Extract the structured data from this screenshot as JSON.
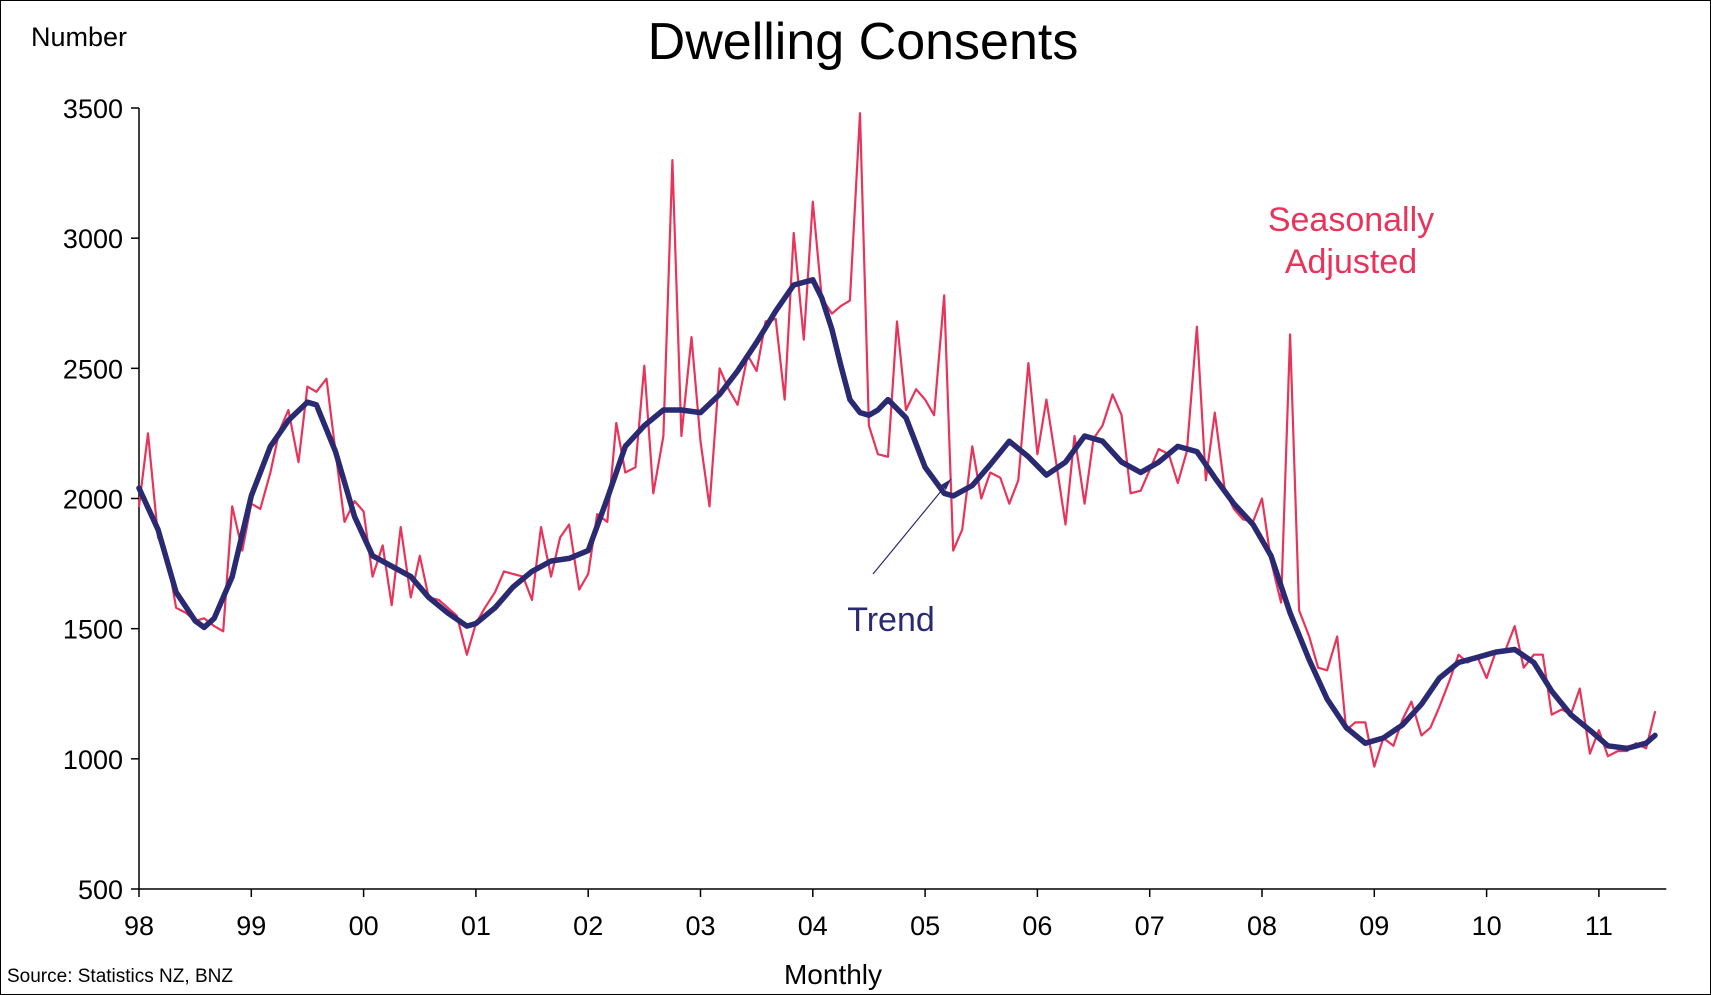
{
  "chart_data": {
    "type": "line",
    "title": "Dwelling Consents",
    "ylabel": "Number",
    "xlabel": "Monthly",
    "source": "Source: Statistics NZ, BNZ",
    "ylim": [
      500,
      3500
    ],
    "yticks": [
      500,
      1000,
      1500,
      2000,
      2500,
      3000,
      3500
    ],
    "xlim": [
      1998.0,
      2011.6
    ],
    "xticks": [
      {
        "label": "98",
        "value": 1998
      },
      {
        "label": "99",
        "value": 1999
      },
      {
        "label": "00",
        "value": 2000
      },
      {
        "label": "01",
        "value": 2001
      },
      {
        "label": "02",
        "value": 2002
      },
      {
        "label": "03",
        "value": 2003
      },
      {
        "label": "04",
        "value": 2004
      },
      {
        "label": "05",
        "value": 2005
      },
      {
        "label": "06",
        "value": 2006
      },
      {
        "label": "07",
        "value": 2007
      },
      {
        "label": "08",
        "value": 2008
      },
      {
        "label": "09",
        "value": 2009
      },
      {
        "label": "10",
        "value": 2010
      },
      {
        "label": "11",
        "value": 2011
      }
    ],
    "grid": false,
    "annotations": [
      {
        "text_lines": [
          "Seasonally",
          "Adjusted"
        ],
        "series": "seasonally_adjusted"
      },
      {
        "text_lines": [
          "Trend"
        ],
        "series": "trend",
        "arrow": true
      }
    ],
    "series": [
      {
        "key": "seasonally_adjusted",
        "color": "#e8345a",
        "x": [
          1998.0,
          1998.08,
          1998.17,
          1998.25,
          1998.33,
          1998.42,
          1998.5,
          1998.58,
          1998.67,
          1998.75,
          1998.83,
          1998.92,
          1999.0,
          1999.08,
          1999.17,
          1999.25,
          1999.33,
          1999.42,
          1999.5,
          1999.58,
          1999.67,
          1999.75,
          1999.83,
          1999.92,
          2000.0,
          2000.08,
          2000.17,
          2000.25,
          2000.33,
          2000.42,
          2000.5,
          2000.58,
          2000.67,
          2000.75,
          2000.83,
          2000.92,
          2001.0,
          2001.08,
          2001.17,
          2001.25,
          2001.33,
          2001.42,
          2001.5,
          2001.58,
          2001.67,
          2001.75,
          2001.83,
          2001.92,
          2002.0,
          2002.08,
          2002.17,
          2002.25,
          2002.33,
          2002.42,
          2002.5,
          2002.58,
          2002.67,
          2002.75,
          2002.83,
          2002.92,
          2003.0,
          2003.08,
          2003.17,
          2003.25,
          2003.33,
          2003.42,
          2003.5,
          2003.58,
          2003.67,
          2003.75,
          2003.83,
          2003.92,
          2004.0,
          2004.08,
          2004.17,
          2004.25,
          2004.33,
          2004.42,
          2004.5,
          2004.58,
          2004.67,
          2004.75,
          2004.83,
          2004.92,
          2005.0,
          2005.08,
          2005.17,
          2005.25,
          2005.33,
          2005.42,
          2005.5,
          2005.58,
          2005.67,
          2005.75,
          2005.83,
          2005.92,
          2006.0,
          2006.08,
          2006.17,
          2006.25,
          2006.33,
          2006.42,
          2006.5,
          2006.58,
          2006.67,
          2006.75,
          2006.83,
          2006.92,
          2007.0,
          2007.08,
          2007.17,
          2007.25,
          2007.33,
          2007.42,
          2007.5,
          2007.58,
          2007.67,
          2007.75,
          2007.83,
          2007.92,
          2008.0,
          2008.08,
          2008.17,
          2008.25,
          2008.33,
          2008.42,
          2008.5,
          2008.58,
          2008.67,
          2008.75,
          2008.83,
          2008.92,
          2009.0,
          2009.08,
          2009.17,
          2009.25,
          2009.33,
          2009.42,
          2009.5,
          2009.58,
          2009.67,
          2009.75,
          2009.83,
          2009.92,
          2010.0,
          2010.08,
          2010.17,
          2010.25,
          2010.33,
          2010.42,
          2010.5,
          2010.58,
          2010.67,
          2010.75,
          2010.83,
          2010.92,
          2011.0,
          2011.08,
          2011.17,
          2011.25,
          2011.33,
          2011.42,
          2011.5
        ],
        "y": [
          1970,
          2250,
          1850,
          1780,
          1580,
          1560,
          1530,
          1540,
          1510,
          1490,
          1970,
          1800,
          1980,
          1960,
          2100,
          2260,
          2340,
          2140,
          2430,
          2410,
          2460,
          2180,
          1910,
          1990,
          1950,
          1700,
          1820,
          1590,
          1890,
          1620,
          1780,
          1620,
          1610,
          1580,
          1550,
          1400,
          1520,
          1580,
          1640,
          1720,
          1710,
          1700,
          1610,
          1890,
          1700,
          1850,
          1900,
          1650,
          1710,
          1940,
          1910,
          2290,
          2100,
          2120,
          2510,
          2020,
          2240,
          3300,
          2240,
          2620,
          2220,
          1970,
          2500,
          2420,
          2360,
          2550,
          2490,
          2680,
          2690,
          2380,
          3020,
          2610,
          3140,
          2770,
          2710,
          2740,
          2760,
          3480,
          2280,
          2170,
          2160,
          2680,
          2340,
          2420,
          2380,
          2320,
          2780,
          1800,
          1880,
          2200,
          2000,
          2100,
          2080,
          1980,
          2070,
          2520,
          2170,
          2380,
          2130,
          1900,
          2240,
          1980,
          2230,
          2280,
          2400,
          2320,
          2020,
          2030,
          2110,
          2190,
          2170,
          2060,
          2180,
          2660,
          2070,
          2330,
          2030,
          1960,
          1920,
          1910,
          2000,
          1760,
          1600,
          2630,
          1570,
          1470,
          1350,
          1340,
          1470,
          1110,
          1140,
          1140,
          970,
          1080,
          1050,
          1150,
          1220,
          1090,
          1120,
          1200,
          1300,
          1400,
          1370,
          1390,
          1310,
          1410,
          1420,
          1510,
          1350,
          1400,
          1400,
          1170,
          1190,
          1170,
          1270,
          1020,
          1110,
          1010,
          1030,
          1030,
          1060,
          1040,
          1180
        ]
      },
      {
        "key": "trend",
        "color": "#2a2a73",
        "x": [
          1998.0,
          1998.17,
          1998.33,
          1998.5,
          1998.58,
          1998.67,
          1998.83,
          1999.0,
          1999.17,
          1999.33,
          1999.5,
          1999.58,
          1999.75,
          1999.92,
          2000.08,
          2000.25,
          2000.42,
          2000.58,
          2000.75,
          2000.92,
          2001.0,
          2001.17,
          2001.33,
          2001.5,
          2001.67,
          2001.83,
          2002.0,
          2002.17,
          2002.33,
          2002.5,
          2002.67,
          2002.83,
          2003.0,
          2003.17,
          2003.33,
          2003.5,
          2003.67,
          2003.83,
          2004.0,
          2004.08,
          2004.17,
          2004.25,
          2004.33,
          2004.42,
          2004.5,
          2004.58,
          2004.67,
          2004.83,
          2005.0,
          2005.17,
          2005.25,
          2005.42,
          2005.58,
          2005.75,
          2005.92,
          2006.08,
          2006.25,
          2006.42,
          2006.58,
          2006.75,
          2006.92,
          2007.08,
          2007.25,
          2007.42,
          2007.58,
          2007.75,
          2007.92,
          2008.08,
          2008.25,
          2008.42,
          2008.58,
          2008.75,
          2008.92,
          2009.08,
          2009.25,
          2009.42,
          2009.58,
          2009.75,
          2009.92,
          2010.08,
          2010.25,
          2010.42,
          2010.58,
          2010.75,
          2010.92,
          2011.08,
          2011.25,
          2011.42,
          2011.5
        ],
        "y": [
          2040,
          1880,
          1640,
          1530,
          1505,
          1540,
          1700,
          2010,
          2200,
          2300,
          2370,
          2360,
          2180,
          1930,
          1780,
          1740,
          1700,
          1620,
          1560,
          1510,
          1520,
          1580,
          1660,
          1720,
          1760,
          1770,
          1800,
          2000,
          2200,
          2280,
          2340,
          2340,
          2330,
          2400,
          2490,
          2600,
          2720,
          2820,
          2840,
          2770,
          2650,
          2510,
          2380,
          2330,
          2320,
          2340,
          2380,
          2310,
          2120,
          2020,
          2010,
          2050,
          2130,
          2220,
          2160,
          2090,
          2140,
          2240,
          2220,
          2140,
          2100,
          2140,
          2200,
          2180,
          2080,
          1980,
          1900,
          1780,
          1560,
          1380,
          1230,
          1120,
          1060,
          1080,
          1130,
          1210,
          1310,
          1370,
          1390,
          1410,
          1420,
          1370,
          1260,
          1170,
          1110,
          1050,
          1040,
          1060,
          1090
        ]
      }
    ]
  }
}
